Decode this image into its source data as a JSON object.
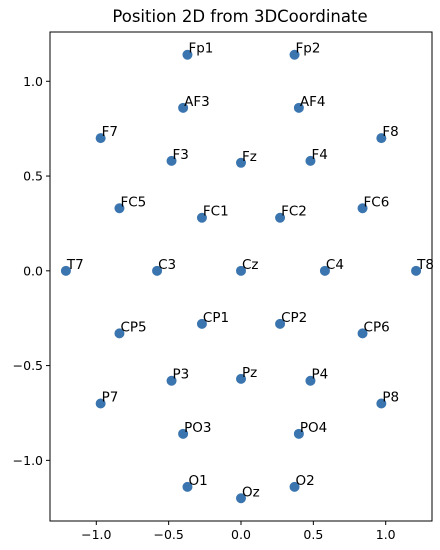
{
  "chart_data": {
    "type": "scatter",
    "title": "Position 2D from 3DCoordinate",
    "xlabel": "",
    "ylabel": "",
    "xlim": [
      -1.32,
      1.32
    ],
    "ylim": [
      -1.32,
      1.26
    ],
    "xticks": [
      -1.0,
      -0.5,
      0.0,
      0.5,
      1.0
    ],
    "yticks": [
      -1.0,
      -0.5,
      0.0,
      0.5,
      1.0
    ],
    "xtick_labels": [
      "−1.0",
      "−0.5",
      "0.0",
      "0.5",
      "1.0"
    ],
    "ytick_labels": [
      "−1.0",
      "−0.5",
      "0.0",
      "0.5",
      "1.0"
    ],
    "grid": false,
    "marker_color": "#3b75af",
    "points": [
      {
        "label": "Fp1",
        "x": -0.37,
        "y": 1.14
      },
      {
        "label": "Fp2",
        "x": 0.37,
        "y": 1.14
      },
      {
        "label": "AF3",
        "x": -0.4,
        "y": 0.86
      },
      {
        "label": "AF4",
        "x": 0.4,
        "y": 0.86
      },
      {
        "label": "F7",
        "x": -0.97,
        "y": 0.7
      },
      {
        "label": "F8",
        "x": 0.97,
        "y": 0.7
      },
      {
        "label": "F3",
        "x": -0.48,
        "y": 0.58
      },
      {
        "label": "Fz",
        "x": 0.0,
        "y": 0.57
      },
      {
        "label": "F4",
        "x": 0.48,
        "y": 0.58
      },
      {
        "label": "FC5",
        "x": -0.84,
        "y": 0.33
      },
      {
        "label": "FC1",
        "x": -0.27,
        "y": 0.28
      },
      {
        "label": "FC2",
        "x": 0.27,
        "y": 0.28
      },
      {
        "label": "FC6",
        "x": 0.84,
        "y": 0.33
      },
      {
        "label": "T7",
        "x": -1.21,
        "y": 0.0
      },
      {
        "label": "C3",
        "x": -0.58,
        "y": 0.0
      },
      {
        "label": "Cz",
        "x": 0.0,
        "y": 0.0
      },
      {
        "label": "C4",
        "x": 0.58,
        "y": 0.0
      },
      {
        "label": "T8",
        "x": 1.21,
        "y": 0.0
      },
      {
        "label": "CP5",
        "x": -0.84,
        "y": -0.33
      },
      {
        "label": "CP1",
        "x": -0.27,
        "y": -0.28
      },
      {
        "label": "CP2",
        "x": 0.27,
        "y": -0.28
      },
      {
        "label": "CP6",
        "x": 0.84,
        "y": -0.33
      },
      {
        "label": "P3",
        "x": -0.48,
        "y": -0.58
      },
      {
        "label": "Pz",
        "x": 0.0,
        "y": -0.57
      },
      {
        "label": "P4",
        "x": 0.48,
        "y": -0.58
      },
      {
        "label": "P7",
        "x": -0.97,
        "y": -0.7
      },
      {
        "label": "P8",
        "x": 0.97,
        "y": -0.7
      },
      {
        "label": "PO3",
        "x": -0.4,
        "y": -0.86
      },
      {
        "label": "PO4",
        "x": 0.4,
        "y": -0.86
      },
      {
        "label": "O1",
        "x": -0.37,
        "y": -1.14
      },
      {
        "label": "Oz",
        "x": 0.0,
        "y": -1.2
      },
      {
        "label": "O2",
        "x": 0.37,
        "y": -1.14
      }
    ]
  }
}
